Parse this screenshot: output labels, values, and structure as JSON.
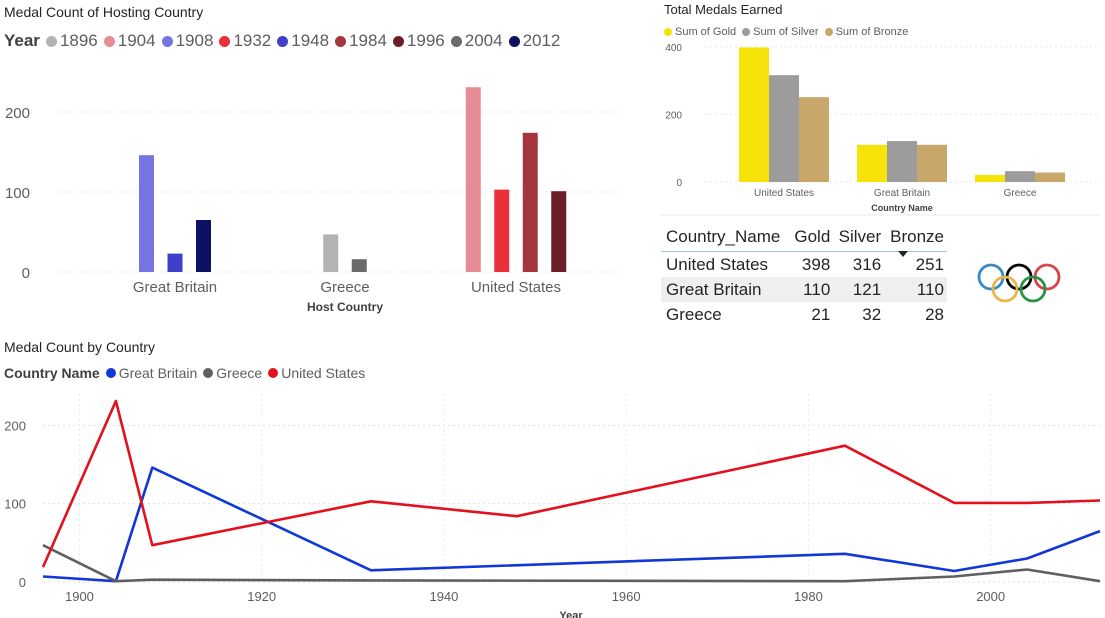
{
  "chart_data": [
    {
      "id": "hosting",
      "type": "bar",
      "title": "Medal Count of Hosting Country",
      "xlabel": "Host Country",
      "ylabel": "",
      "legend_title": "Year",
      "legend_position": "top-left",
      "ylim": [
        0,
        240
      ],
      "yticks": [
        0,
        100,
        200
      ],
      "grid": true,
      "categories": [
        "Great Britain",
        "Greece",
        "United States"
      ],
      "series": [
        {
          "name": "1896",
          "color": "#b3b3b3",
          "values": [
            null,
            47,
            null
          ]
        },
        {
          "name": "1904",
          "color": "#e68c94",
          "values": [
            null,
            null,
            231
          ]
        },
        {
          "name": "1908",
          "color": "#7475e3",
          "values": [
            146,
            null,
            null
          ]
        },
        {
          "name": "1932",
          "color": "#e8313d",
          "values": [
            null,
            null,
            103
          ]
        },
        {
          "name": "1948",
          "color": "#3f40c9",
          "values": [
            23,
            null,
            null
          ]
        },
        {
          "name": "1984",
          "color": "#a5353e",
          "values": [
            null,
            null,
            174
          ]
        },
        {
          "name": "1996",
          "color": "#6d1f27",
          "values": [
            null,
            null,
            101
          ]
        },
        {
          "name": "2004",
          "color": "#6b6b6b",
          "values": [
            null,
            16,
            null
          ]
        },
        {
          "name": "2012",
          "color": "#0d1163",
          "values": [
            65,
            null,
            null
          ]
        }
      ]
    },
    {
      "id": "total",
      "type": "bar",
      "title": "Total Medals Earned",
      "xlabel": "Country Name",
      "ylabel": "",
      "legend_position": "top-left",
      "ylim": [
        0,
        420
      ],
      "yticks": [
        0,
        200,
        400
      ],
      "grid": true,
      "categories": [
        "United States",
        "Great Britain",
        "Greece"
      ],
      "series": [
        {
          "name": "Sum of Gold",
          "color": "#f5e30a",
          "values": [
            398,
            110,
            21
          ]
        },
        {
          "name": "Sum of Silver",
          "color": "#9c9c9c",
          "values": [
            316,
            121,
            32
          ]
        },
        {
          "name": "Sum of Bronze",
          "color": "#c9a76a",
          "values": [
            251,
            110,
            28
          ]
        }
      ]
    },
    {
      "id": "line",
      "type": "line",
      "title": "Medal Count by Country",
      "xlabel": "Year",
      "ylabel": "",
      "legend_title": "Country Name",
      "legend_position": "top-left",
      "xlim": [
        1896,
        2012
      ],
      "ylim": [
        0,
        240
      ],
      "xticks": [
        1900,
        1920,
        1940,
        1960,
        1980,
        2000
      ],
      "yticks": [
        0,
        100,
        200
      ],
      "grid": true,
      "series": [
        {
          "name": "Great Britain",
          "color": "#1237d9",
          "x": [
            1896,
            1904,
            1908,
            1932,
            1984,
            1996,
            2004,
            2012
          ],
          "y": [
            7,
            1,
            146,
            15,
            36,
            14,
            30,
            65
          ]
        },
        {
          "name": "Greece",
          "color": "#5f5f5f",
          "x": [
            1896,
            1904,
            1908,
            1932,
            1984,
            1996,
            2004,
            2012
          ],
          "y": [
            47,
            1,
            3,
            2,
            1,
            7,
            16,
            1
          ]
        },
        {
          "name": "United States",
          "color": "#e3101d",
          "x": [
            1896,
            1904,
            1908,
            1932,
            1948,
            1984,
            1996,
            2004,
            2012
          ],
          "y": [
            19,
            231,
            47,
            103,
            84,
            174,
            101,
            101,
            104
          ]
        }
      ]
    }
  ],
  "table": {
    "columns": [
      "Country_Name",
      "Gold",
      "Silver",
      "Bronze"
    ],
    "sorted_column": "Bronze",
    "rows": [
      [
        "United States",
        "398",
        "316",
        "251"
      ],
      [
        "Great Britain",
        "110",
        "121",
        "110"
      ],
      [
        "Greece",
        "21",
        "32",
        "28"
      ]
    ]
  },
  "olympic_rings": {
    "colors": [
      "#3b88c8",
      "#e7b64a",
      "#000000",
      "#2a9246",
      "#d9434a"
    ]
  }
}
